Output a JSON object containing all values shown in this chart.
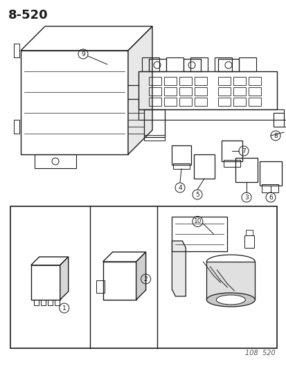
{
  "title": "8-520",
  "subtitle": "108  520",
  "background_color": "#ffffff",
  "line_color": "#1a1a1a",
  "title_fontsize": 13,
  "subtitle_fontsize": 7,
  "fig_width": 4.14,
  "fig_height": 5.33
}
